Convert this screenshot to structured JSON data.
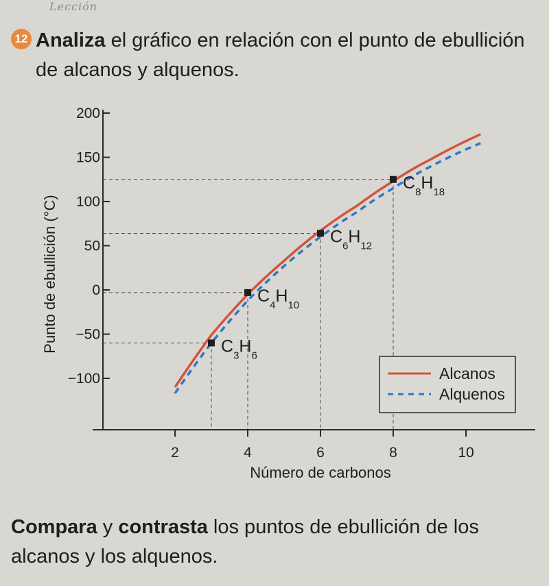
{
  "handwriting": "Lección",
  "question": {
    "number": "12",
    "intro_bold": "Analiza",
    "intro_rest": " el gráfico en relación con el punto de ebullición de alcanos y alquenos."
  },
  "footer": {
    "bold1": "Compara",
    "mid1": " y ",
    "bold2": "contrasta",
    "rest": " los puntos de ebullición de los alcanos y los alquenos."
  },
  "chart_data": {
    "type": "line",
    "xlabel": "Número de carbonos",
    "ylabel": "Punto de ebullición (°C)",
    "xlim": [
      1,
      11
    ],
    "ylim": [
      -150,
      200
    ],
    "x_ticks": [
      2,
      4,
      6,
      8,
      10
    ],
    "y_ticks": [
      200,
      150,
      100,
      50,
      0,
      -50,
      -100
    ],
    "legend_position": "bottom-right",
    "series": [
      {
        "name": "Alcanos",
        "style": "solid",
        "color": "#d2543c",
        "x": [
          2,
          3,
          4,
          5,
          6,
          7,
          8,
          9,
          10.4
        ],
        "y": [
          -110,
          -51,
          -5,
          33,
          67,
          95,
          123,
          147,
          176
        ]
      },
      {
        "name": "Alquenos",
        "style": "dashed",
        "color": "#2f78c8",
        "x": [
          2,
          3,
          4,
          5,
          6,
          7,
          8,
          9,
          10.4
        ],
        "y": [
          -117,
          -60,
          -12,
          27,
          60,
          88,
          115,
          139,
          166
        ]
      }
    ],
    "highlighted_points": [
      {
        "x": 3,
        "y": -60,
        "formula": "C",
        "n1": "3",
        "H": "H",
        "n2": "6"
      },
      {
        "x": 4,
        "y": -3,
        "formula": "C",
        "n1": "4",
        "H": "H",
        "n2": "10"
      },
      {
        "x": 6,
        "y": 64,
        "formula": "C",
        "n1": "6",
        "H": "H",
        "n2": "12"
      },
      {
        "x": 8,
        "y": 125,
        "formula": "C",
        "n1": "8",
        "H": "H",
        "n2": "18"
      }
    ]
  }
}
